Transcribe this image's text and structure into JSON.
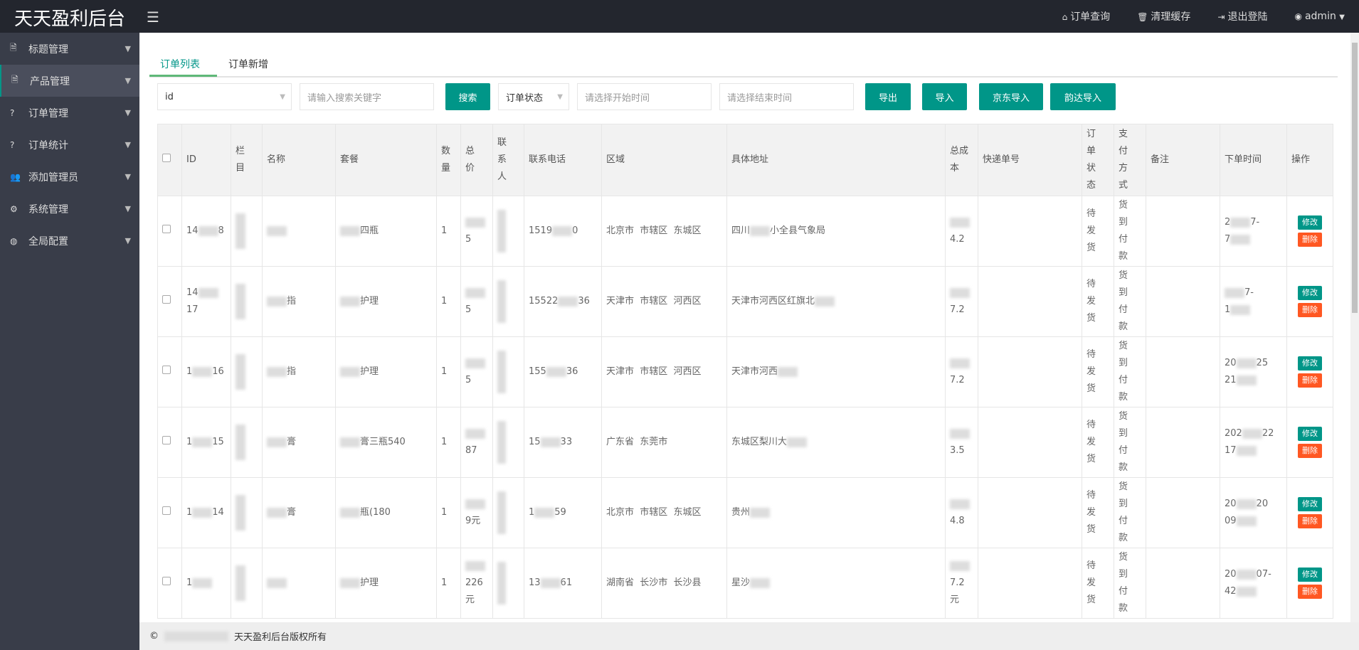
{
  "header": {
    "logo": "天天盈利后台",
    "nav": [
      {
        "icon": "home-icon",
        "label": "订单查询"
      },
      {
        "icon": "trash-icon",
        "label": "清理缓存"
      },
      {
        "icon": "logout-icon",
        "label": "退出登陆"
      },
      {
        "icon": "user-icon",
        "label": "admin"
      }
    ]
  },
  "sidebar": {
    "items": [
      {
        "icon": "document-icon",
        "label": "标题管理"
      },
      {
        "icon": "document-icon",
        "label": "产品管理",
        "active": true
      },
      {
        "icon": "question-icon",
        "label": "订单管理"
      },
      {
        "icon": "question-icon",
        "label": "订单统计"
      },
      {
        "icon": "users-icon",
        "label": "添加管理员"
      },
      {
        "icon": "gear-icon",
        "label": "系统管理"
      },
      {
        "icon": "globe-icon",
        "label": "全局配置"
      }
    ]
  },
  "tabs": [
    {
      "label": "订单列表",
      "active": true
    },
    {
      "label": "订单新增"
    }
  ],
  "toolbar": {
    "field_select": "id",
    "search_placeholder": "请输入搜索关键字",
    "search": "搜索",
    "status_select": "订单状态",
    "start_placeholder": "请选择开始时间",
    "end_placeholder": "请选择结束时间",
    "export": "导出",
    "import": "导入",
    "jd_import": "京东导入",
    "yunda_import": "韵达导入"
  },
  "table": {
    "headers": [
      "ID",
      "栏目",
      "名称",
      "套餐",
      "数量",
      "总价",
      "联系人",
      "联系电话",
      "区域",
      "具体地址",
      "总成本",
      "快递单号",
      "订单状态",
      "支付方式",
      "备注",
      "下单时间",
      "操作"
    ],
    "edit": "修改",
    "delete": "删除",
    "rows": [
      {
        "id": [
          "14",
          "8"
        ],
        "name": [
          "",
          ""
        ],
        "pkg": [
          "",
          "四瓶"
        ],
        "qty": "1",
        "total": [
          "",
          "5"
        ],
        "phone": [
          "1519",
          "0"
        ],
        "region": "北京市  市辖区  东城区",
        "addr": [
          "四川",
          "小全县气象局"
        ],
        "cost": [
          "",
          "4.2"
        ],
        "status": "待发货",
        "pay": "货到付款",
        "time": [
          "2",
          "7-",
          "7"
        ]
      },
      {
        "id": [
          "14",
          "17"
        ],
        "name": [
          "",
          "指"
        ],
        "pkg": [
          "",
          "护理"
        ],
        "qty": "1",
        "total": [
          "",
          "5"
        ],
        "phone": [
          "15522",
          "36"
        ],
        "region": "天津市  市辖区  河西区",
        "addr": [
          "天津市河西区红旗北",
          ""
        ],
        "cost": [
          "",
          "7.2"
        ],
        "status": "待发货",
        "pay": "货到付款",
        "time": [
          "",
          "7-",
          "1"
        ]
      },
      {
        "id": [
          "1",
          "16"
        ],
        "name": [
          "",
          "指"
        ],
        "pkg": [
          "",
          "护理"
        ],
        "qty": "1",
        "total": [
          "",
          "5"
        ],
        "phone": [
          "155",
          "36"
        ],
        "region": "天津市  市辖区  河西区",
        "addr": [
          "天津市河西",
          ""
        ],
        "cost": [
          "",
          "7.2"
        ],
        "status": "待发货",
        "pay": "货到付款",
        "time": [
          "20",
          "25",
          "21"
        ]
      },
      {
        "id": [
          "1",
          "15"
        ],
        "name": [
          "",
          "膏"
        ],
        "pkg": [
          "",
          "膏三瓶540"
        ],
        "qty": "1",
        "total": [
          "",
          "87"
        ],
        "phone": [
          "15",
          "33"
        ],
        "region": "广东省  东莞市",
        "addr": [
          "东城区梨川大",
          ""
        ],
        "cost": [
          "",
          "3.5"
        ],
        "status": "待发货",
        "pay": "货到付款",
        "time": [
          "202",
          "22",
          "17"
        ]
      },
      {
        "id": [
          "1",
          "14"
        ],
        "name": [
          "",
          "膏"
        ],
        "pkg": [
          "",
          "瓶(180"
        ],
        "qty": "1",
        "total": [
          "",
          "9元"
        ],
        "phone": [
          "1",
          "59"
        ],
        "region": "北京市  市辖区  东城区",
        "addr": [
          "贵州",
          ""
        ],
        "cost": [
          "",
          "4.8"
        ],
        "status": "待发货",
        "pay": "货到付款",
        "time": [
          "20",
          "20",
          "09"
        ]
      },
      {
        "id": [
          "1",
          ""
        ],
        "name": [
          "",
          ""
        ],
        "pkg": [
          "",
          "护理"
        ],
        "qty": "1",
        "total": [
          "",
          "226元"
        ],
        "phone": [
          "13",
          "61"
        ],
        "region": "湖南省  长沙市  长沙县",
        "addr": [
          "星沙",
          ""
        ],
        "cost": [
          "",
          "7.2元"
        ],
        "status": "待发货",
        "pay": "货到付款",
        "time": [
          "20",
          "07-",
          "42"
        ]
      }
    ]
  },
  "footer": {
    "copyright_symbol": "©",
    "text": "天天盈利后台版权所有"
  },
  "colors": {
    "topbar": "#23262e",
    "sidebar": "#393d49",
    "primary": "#009688",
    "danger": "#ff5722"
  }
}
